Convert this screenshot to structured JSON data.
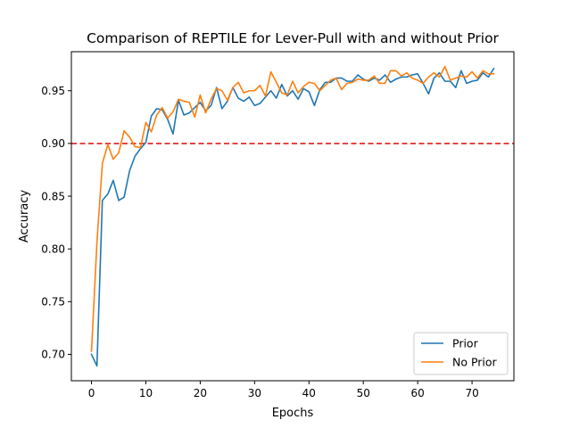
{
  "chart_data": {
    "type": "line",
    "title": "Comparison of REPTILE for Lever-Pull with and without Prior",
    "xlabel": "Epochs",
    "ylabel": "Accuracy",
    "xlim": [
      -3.7,
      77.7
    ],
    "ylim": [
      0.675,
      0.987
    ],
    "xticks": [
      0,
      10,
      20,
      30,
      40,
      50,
      60,
      70
    ],
    "yticks": [
      0.7,
      0.75,
      0.8,
      0.85,
      0.9,
      0.95
    ],
    "ytick_labels": [
      "0.70",
      "0.75",
      "0.80",
      "0.85",
      "0.90",
      "0.95"
    ],
    "reference_line": {
      "y": 0.9,
      "color": "#e41a1c",
      "style": "dashed"
    },
    "legend": {
      "placement": "lower-right"
    },
    "grid": false,
    "series": [
      {
        "name": "Prior",
        "color": "#1f77b4",
        "x": [
          0,
          1,
          2,
          3,
          4,
          5,
          6,
          7,
          8,
          9,
          10,
          11,
          12,
          13,
          14,
          15,
          16,
          17,
          18,
          19,
          20,
          21,
          22,
          23,
          24,
          25,
          26,
          27,
          28,
          29,
          30,
          31,
          32,
          33,
          34,
          35,
          36,
          37,
          38,
          39,
          40,
          41,
          42,
          43,
          44,
          45,
          46,
          47,
          48,
          49,
          50,
          51,
          52,
          53,
          54,
          55,
          56,
          57,
          58,
          59,
          60,
          61,
          62,
          63,
          64,
          65,
          66,
          67,
          68,
          69,
          70,
          71,
          72,
          73,
          74
        ],
        "values": [
          0.7,
          0.689,
          0.846,
          0.852,
          0.865,
          0.846,
          0.849,
          0.874,
          0.888,
          0.895,
          0.901,
          0.926,
          0.933,
          0.932,
          0.923,
          0.909,
          0.941,
          0.927,
          0.929,
          0.934,
          0.939,
          0.931,
          0.936,
          0.953,
          0.933,
          0.94,
          0.953,
          0.943,
          0.94,
          0.944,
          0.936,
          0.938,
          0.944,
          0.95,
          0.943,
          0.956,
          0.945,
          0.95,
          0.942,
          0.952,
          0.949,
          0.936,
          0.951,
          0.958,
          0.958,
          0.962,
          0.962,
          0.959,
          0.959,
          0.965,
          0.961,
          0.959,
          0.962,
          0.96,
          0.965,
          0.958,
          0.961,
          0.963,
          0.963,
          0.965,
          0.966,
          0.957,
          0.947,
          0.962,
          0.967,
          0.959,
          0.959,
          0.953,
          0.969,
          0.957,
          0.959,
          0.96,
          0.967,
          0.963,
          0.971
        ]
      },
      {
        "name": "No Prior",
        "color": "#ff7f0e",
        "x": [
          0,
          1,
          2,
          3,
          4,
          5,
          6,
          7,
          8,
          9,
          10,
          11,
          12,
          13,
          14,
          15,
          16,
          17,
          18,
          19,
          20,
          21,
          22,
          23,
          24,
          25,
          26,
          27,
          28,
          29,
          30,
          31,
          32,
          33,
          34,
          35,
          36,
          37,
          38,
          39,
          40,
          41,
          42,
          43,
          44,
          45,
          46,
          47,
          48,
          49,
          50,
          51,
          52,
          53,
          54,
          55,
          56,
          57,
          58,
          59,
          60,
          61,
          62,
          63,
          64,
          65,
          66,
          67,
          68,
          69,
          70,
          71,
          72,
          73,
          74
        ],
        "values": [
          0.703,
          0.806,
          0.881,
          0.899,
          0.885,
          0.891,
          0.912,
          0.906,
          0.897,
          0.896,
          0.92,
          0.911,
          0.927,
          0.934,
          0.924,
          0.93,
          0.942,
          0.94,
          0.939,
          0.925,
          0.946,
          0.929,
          0.942,
          0.952,
          0.95,
          0.941,
          0.953,
          0.958,
          0.948,
          0.95,
          0.95,
          0.955,
          0.945,
          0.968,
          0.958,
          0.948,
          0.946,
          0.959,
          0.948,
          0.954,
          0.958,
          0.957,
          0.95,
          0.955,
          0.96,
          0.962,
          0.951,
          0.957,
          0.958,
          0.961,
          0.96,
          0.96,
          0.964,
          0.957,
          0.957,
          0.969,
          0.969,
          0.964,
          0.967,
          0.962,
          0.96,
          0.957,
          0.963,
          0.967,
          0.963,
          0.973,
          0.96,
          0.962,
          0.964,
          0.963,
          0.968,
          0.962,
          0.969,
          0.966,
          0.966
        ]
      }
    ]
  }
}
